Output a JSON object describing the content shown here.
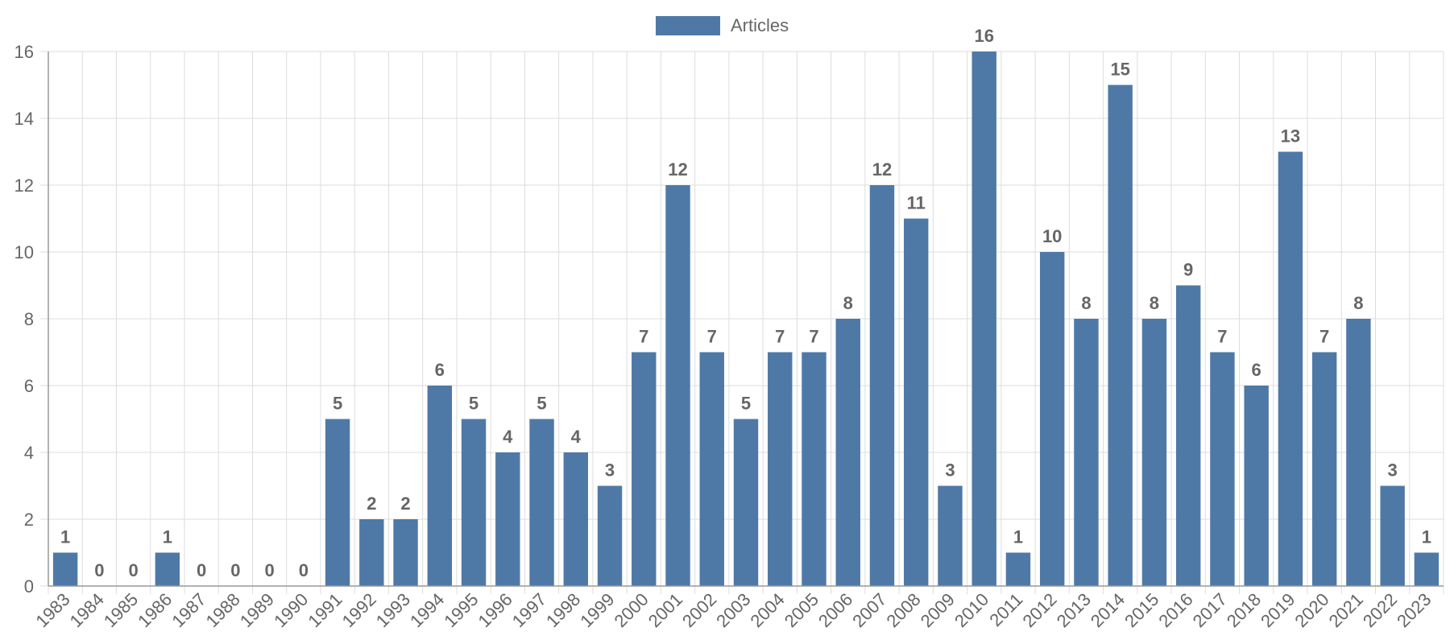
{
  "chart_data": {
    "type": "bar",
    "categories": [
      "1983",
      "1984",
      "1985",
      "1986",
      "1987",
      "1988",
      "1989",
      "1990",
      "1991",
      "1992",
      "1993",
      "1994",
      "1995",
      "1996",
      "1997",
      "1998",
      "1999",
      "2000",
      "2001",
      "2002",
      "2003",
      "2004",
      "2005",
      "2006",
      "2007",
      "2008",
      "2009",
      "2010",
      "2011",
      "2012",
      "2013",
      "2014",
      "2015",
      "2016",
      "2017",
      "2018",
      "2019",
      "2020",
      "2021",
      "2022",
      "2023"
    ],
    "series": [
      {
        "name": "Articles",
        "values": [
          1,
          0,
          0,
          1,
          0,
          0,
          0,
          0,
          5,
          2,
          2,
          6,
          5,
          4,
          5,
          4,
          3,
          7,
          12,
          7,
          5,
          7,
          7,
          8,
          12,
          11,
          3,
          16,
          1,
          10,
          8,
          15,
          8,
          9,
          7,
          6,
          13,
          7,
          8,
          3,
          1
        ]
      }
    ],
    "ylim": [
      0,
      16
    ],
    "yticks": [
      0,
      2,
      4,
      6,
      8,
      10,
      12,
      14,
      16
    ],
    "grid": true,
    "legend_position": "top-center",
    "colors": {
      "bar": "#4e79a7",
      "grid": "#dddddd",
      "axis": "#999999",
      "text": "#666666"
    }
  }
}
